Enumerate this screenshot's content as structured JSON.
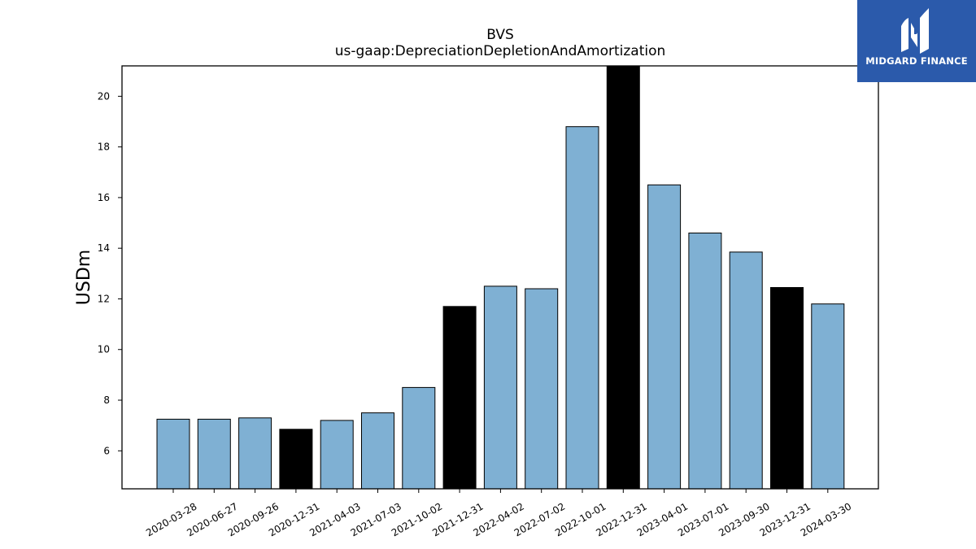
{
  "chart_data": {
    "type": "bar",
    "title": "BVS",
    "subtitle": "us-gaap:DepreciationDepletionAndAmortization",
    "xlabel": "",
    "ylabel": "USDm",
    "ylim": [
      4.5,
      21.2
    ],
    "yticks": [
      6,
      8,
      10,
      12,
      14,
      16,
      18,
      20
    ],
    "grid": false,
    "categories": [
      "2020-03-28",
      "2020-06-27",
      "2020-09-26",
      "2020-12-31",
      "2021-04-03",
      "2021-07-03",
      "2021-10-02",
      "2021-12-31",
      "2022-04-02",
      "2022-07-02",
      "2022-10-01",
      "2022-12-31",
      "2023-04-01",
      "2023-07-01",
      "2023-09-30",
      "2023-12-31",
      "2024-03-30"
    ],
    "values": [
      7.25,
      7.25,
      7.3,
      6.85,
      7.2,
      7.5,
      8.5,
      11.7,
      12.5,
      12.4,
      18.8,
      21.2,
      16.5,
      14.6,
      13.85,
      12.45,
      11.8
    ],
    "bar_colors": [
      "#7fb0d3",
      "#7fb0d3",
      "#7fb0d3",
      "#000000",
      "#7fb0d3",
      "#7fb0d3",
      "#7fb0d3",
      "#000000",
      "#7fb0d3",
      "#7fb0d3",
      "#7fb0d3",
      "#000000",
      "#7fb0d3",
      "#7fb0d3",
      "#7fb0d3",
      "#000000",
      "#7fb0d3"
    ]
  },
  "logo": {
    "text": "MIDGARD FINANCE",
    "background": "#2b5aab"
  }
}
